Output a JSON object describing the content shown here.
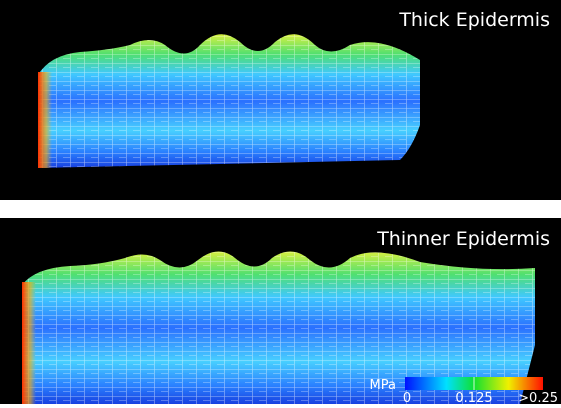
{
  "panels": [
    {
      "title": "Thick Epidermis"
    },
    {
      "title": "Thinner Epidermis"
    }
  ],
  "colorbar": {
    "unit": "MPa",
    "ticks": [
      "0",
      "0.125",
      ">0.25"
    ]
  }
}
